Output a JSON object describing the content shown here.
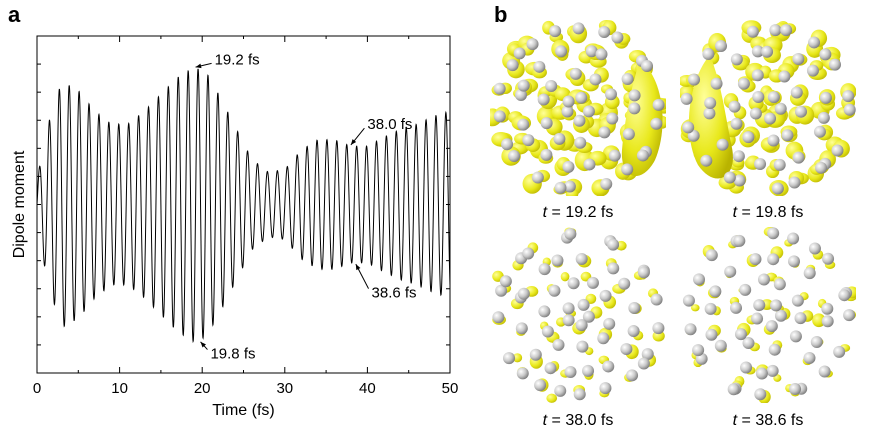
{
  "panel_a": {
    "letter": "a"
  },
  "panel_b": {
    "letter": "b",
    "snapshots": [
      {
        "t_label": "t",
        "caption": " = 19.2 fs",
        "variant": "blob-right"
      },
      {
        "t_label": "t",
        "caption": " = 19.8 fs",
        "variant": "blob-left"
      },
      {
        "t_label": "t",
        "caption": " = 38.0 fs",
        "variant": "sparse"
      },
      {
        "t_label": "t",
        "caption": " = 38.6 fs",
        "variant": "sparse"
      }
    ],
    "colors": {
      "isosurface": "#e8e81a",
      "isosurface_dark": "#b9b300",
      "atom": "#c9c9c9",
      "atom_dark": "#7a7a7a"
    }
  },
  "chart_data": {
    "type": "line",
    "title": "",
    "xlabel": "Time (fs)",
    "ylabel": "Dipole moment",
    "xlim": [
      0,
      50
    ],
    "xticks": [
      0,
      10,
      20,
      30,
      40,
      50
    ],
    "xtick_labels": [
      "0",
      "10",
      "20",
      "30",
      "40",
      "50"
    ],
    "ylim": [
      -1.3,
      1.3
    ],
    "y_minor_tick_count": 12,
    "grid": false,
    "series": [
      {
        "period_fs": 1.2,
        "envelope": [
          [
            0,
            0.2
          ],
          [
            1.5,
            0.65
          ],
          [
            3,
            0.95
          ],
          [
            5,
            0.88
          ],
          [
            7,
            0.72
          ],
          [
            9,
            0.62
          ],
          [
            11,
            0.62
          ],
          [
            13,
            0.72
          ],
          [
            15,
            0.85
          ],
          [
            17,
            0.98
          ],
          [
            19,
            1.06
          ],
          [
            20.5,
            1.02
          ],
          [
            22,
            0.85
          ],
          [
            24,
            0.6
          ],
          [
            26,
            0.35
          ],
          [
            28,
            0.25
          ],
          [
            30,
            0.27
          ],
          [
            32,
            0.42
          ],
          [
            34,
            0.5
          ],
          [
            36,
            0.5
          ],
          [
            38,
            0.45
          ],
          [
            40,
            0.45
          ],
          [
            42,
            0.52
          ],
          [
            44,
            0.58
          ],
          [
            46,
            0.62
          ],
          [
            48,
            0.68
          ],
          [
            50,
            0.72
          ]
        ]
      }
    ],
    "annotations": [
      {
        "label": "19.2 fs",
        "x": 19.2,
        "y": 1.06,
        "text_x": 21.5,
        "text_y": 1.12
      },
      {
        "label": "19.8 fs",
        "x": 19.8,
        "y": -1.06,
        "text_x": 21.0,
        "text_y": -1.15
      },
      {
        "label": "38.0 fs",
        "x": 38.0,
        "y": 0.46,
        "text_x": 40.0,
        "text_y": 0.62
      },
      {
        "label": "38.6 fs",
        "x": 38.6,
        "y": -0.46,
        "text_x": 40.5,
        "text_y": -0.68
      }
    ]
  }
}
